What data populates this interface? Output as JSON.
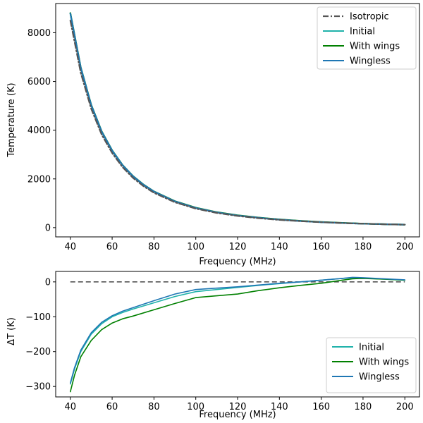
{
  "chart_data": [
    {
      "type": "line",
      "xlabel": "Frequency (MHz)",
      "ylabel": "Temperature (K)",
      "xlim": [
        33,
        207
      ],
      "ylim": [
        -380,
        9200
      ],
      "xticks": [
        "40",
        "60",
        "80",
        "100",
        "120",
        "140",
        "160",
        "180",
        "200"
      ],
      "yticks": [
        "0",
        "2000",
        "4000",
        "6000",
        "8000"
      ],
      "legend_position": "top-right",
      "x": [
        40,
        45,
        50,
        55,
        60,
        65,
        70,
        75,
        80,
        90,
        100,
        110,
        120,
        130,
        140,
        150,
        160,
        170,
        180,
        190,
        200
      ],
      "series": [
        {
          "name": "Isotropic",
          "style": "dashdot",
          "color": "#555555",
          "values": [
            8500,
            6350,
            4880,
            3820,
            3060,
            2480,
            2040,
            1700,
            1430,
            1040,
            780,
            605,
            480,
            388,
            318,
            264,
            222,
            188,
            160,
            138,
            120
          ]
        },
        {
          "name": "Initial",
          "style": "solid",
          "color": "#20b2aa",
          "values": [
            8790,
            6560,
            5030,
            3940,
            3160,
            2560,
            2110,
            1760,
            1480,
            1080,
            810,
            628,
            498,
            403,
            330,
            272,
            226,
            190,
            162,
            140,
            123
          ]
        },
        {
          "name": "With wings",
          "style": "solid",
          "color": "#008000",
          "values": [
            8810,
            6575,
            5045,
            3955,
            3170,
            2570,
            2118,
            1768,
            1487,
            1088,
            818,
            637,
            508,
            412,
            338,
            279,
            232,
            195,
            165,
            141,
            124
          ]
        },
        {
          "name": "Wingless",
          "style": "solid",
          "color": "#1f77b4",
          "values": [
            8790,
            6560,
            5030,
            3940,
            3160,
            2560,
            2110,
            1760,
            1480,
            1080,
            810,
            628,
            498,
            403,
            330,
            272,
            226,
            190,
            162,
            140,
            123
          ]
        }
      ]
    },
    {
      "type": "line",
      "xlabel": "Frequency (MHz)",
      "ylabel": "ΔT (K)",
      "xlim": [
        33,
        207
      ],
      "ylim": [
        -330,
        30
      ],
      "xticks": [
        "40",
        "60",
        "80",
        "100",
        "120",
        "140",
        "160",
        "180",
        "200"
      ],
      "yticks": [
        "0",
        "−100",
        "−200",
        "−300"
      ],
      "legend_position": "bottom-right",
      "reference_line": {
        "y": 0,
        "style": "dashed",
        "color": "#555555"
      },
      "x": [
        40,
        42,
        45,
        50,
        55,
        60,
        65,
        70,
        80,
        90,
        100,
        110,
        120,
        130,
        140,
        150,
        160,
        170,
        175,
        180,
        190,
        200
      ],
      "series": [
        {
          "name": "Initial",
          "style": "solid",
          "color": "#20b2aa",
          "values": [
            -293,
            -250,
            -200,
            -150,
            -120,
            -100,
            -88,
            -78,
            -60,
            -42,
            -28,
            -22,
            -16,
            -10,
            -5,
            0,
            5,
            10,
            12,
            11,
            8,
            5
          ]
        },
        {
          "name": "With wings",
          "style": "solid",
          "color": "#008000",
          "values": [
            -315,
            -268,
            -215,
            -168,
            -137,
            -118,
            -106,
            -98,
            -80,
            -62,
            -45,
            -40,
            -35,
            -25,
            -17,
            -10,
            -4,
            5,
            9,
            10,
            8,
            5
          ]
        },
        {
          "name": "Wingless",
          "style": "solid",
          "color": "#1f77b4",
          "values": [
            -290,
            -246,
            -196,
            -146,
            -116,
            -97,
            -84,
            -74,
            -54,
            -35,
            -22,
            -18,
            -14,
            -9,
            -4,
            0,
            5,
            10,
            13,
            12,
            9,
            6
          ]
        }
      ]
    }
  ]
}
